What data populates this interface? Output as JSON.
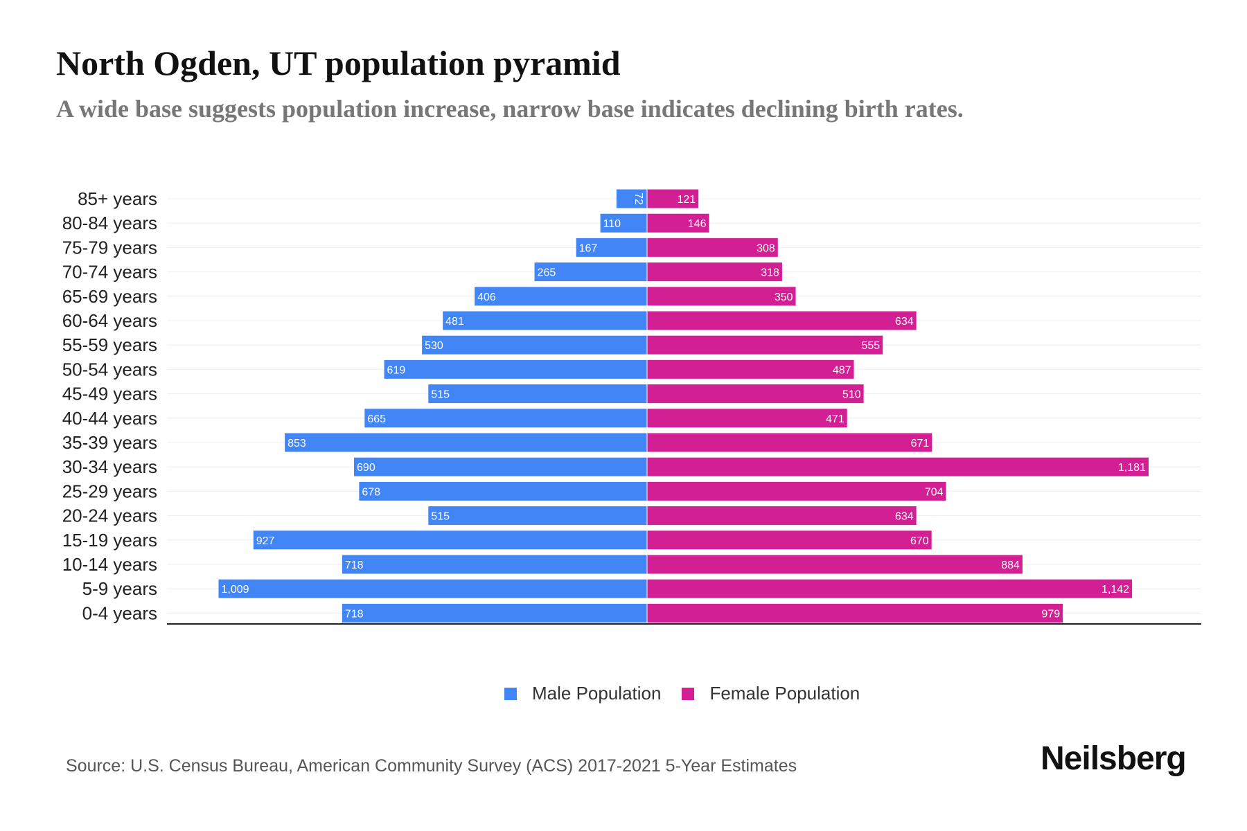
{
  "title": "North Ogden, UT population pyramid",
  "subtitle": "A wide base suggests population increase, narrow base indicates declining birth rates.",
  "source": "Source: U.S. Census Bureau, American Community Survey (ACS) 2017-2021 5-Year Estimates",
  "logo": "Neilsberg",
  "colors": {
    "male": "#4285f4",
    "female": "#d21f94"
  },
  "chart_data": {
    "type": "bar",
    "orientation": "horizontal-pyramid",
    "title": "North Ogden, UT population pyramid",
    "categories": [
      "85+ years",
      "80-84 years",
      "75-79 years",
      "70-74 years",
      "65-69 years",
      "60-64 years",
      "55-59 years",
      "50-54 years",
      "45-49 years",
      "40-44 years",
      "35-39 years",
      "30-34 years",
      "25-29 years",
      "20-24 years",
      "15-19 years",
      "10-14 years",
      "5-9 years",
      "0-4 years"
    ],
    "series": [
      {
        "name": "Male Population",
        "values": [
          72,
          110,
          167,
          265,
          406,
          481,
          530,
          619,
          515,
          665,
          853,
          690,
          678,
          515,
          927,
          718,
          1009,
          718
        ],
        "labels": [
          "72",
          "110",
          "167",
          "265",
          "406",
          "481",
          "530",
          "619",
          "515",
          "665",
          "853",
          "690",
          "678",
          "515",
          "927",
          "718",
          "1,009",
          "718"
        ]
      },
      {
        "name": "Female Population",
        "values": [
          121,
          146,
          308,
          318,
          350,
          634,
          555,
          487,
          510,
          471,
          671,
          1181,
          704,
          634,
          670,
          884,
          1142,
          979
        ],
        "labels": [
          "121",
          "146",
          "308",
          "318",
          "350",
          "634",
          "555",
          "487",
          "510",
          "471",
          "671",
          "1,181",
          "704",
          "634",
          "670",
          "884",
          "1,142",
          "979"
        ]
      }
    ],
    "legend": "bottom-center",
    "grid": true
  }
}
